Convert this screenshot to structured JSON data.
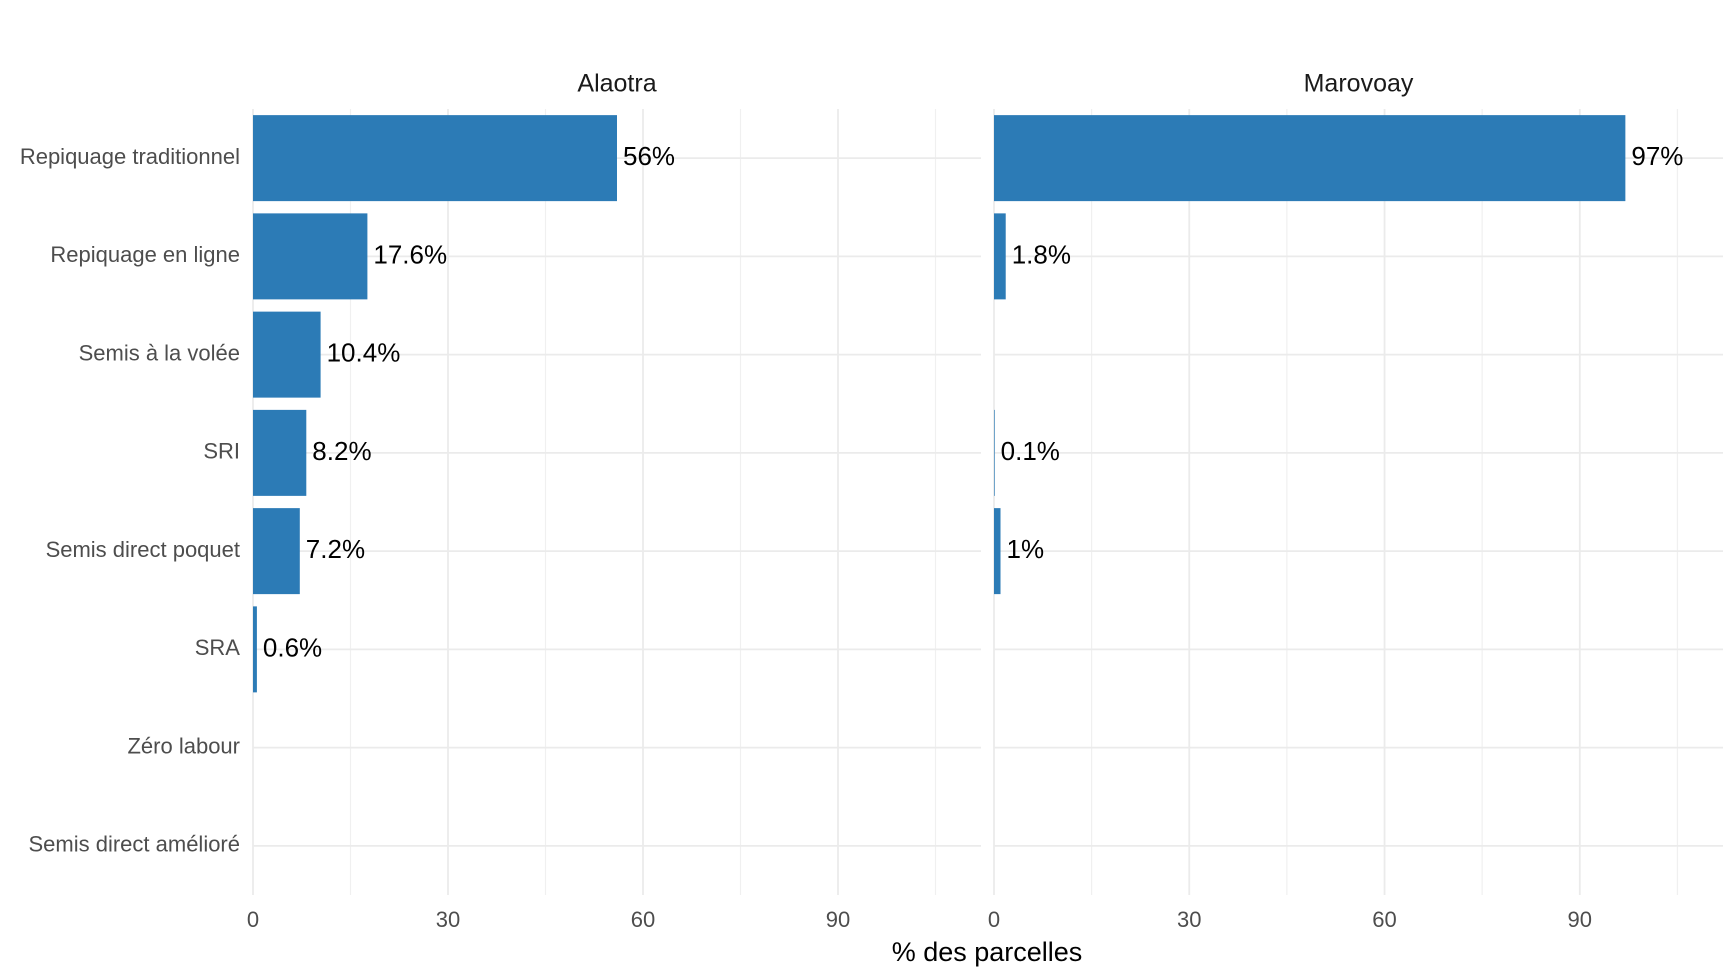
{
  "chart_data": {
    "type": "bar",
    "orientation": "horizontal",
    "x_label": "% des parcelles",
    "categories": [
      "Repiquage traditionnel",
      "Repiquage en ligne",
      "Semis à la volée",
      "SRI",
      "Semis direct poquet",
      "SRA",
      "Zéro labour",
      "Semis direct amélioré"
    ],
    "series": [
      {
        "name": "Alaotra",
        "color": "#2c7bb6",
        "values": [
          56,
          17.6,
          10.4,
          8.2,
          7.2,
          0.6,
          null,
          null
        ],
        "value_labels": [
          "56%",
          "17.6%",
          "10.4%",
          "8.2%",
          "7.2%",
          "0.6%",
          null,
          null
        ]
      },
      {
        "name": "Marovoay",
        "color": "#2c7bb6",
        "values": [
          97,
          1.8,
          null,
          0.1,
          1,
          null,
          null,
          null
        ],
        "value_labels": [
          "97%",
          "1.8%",
          null,
          "0.1%",
          "1%",
          null,
          null,
          null
        ]
      }
    ],
    "xlim": [
      0,
      112
    ],
    "xticks": [
      0,
      30,
      60,
      90
    ],
    "xminor": [
      15,
      45,
      75,
      105
    ],
    "grid": true
  }
}
